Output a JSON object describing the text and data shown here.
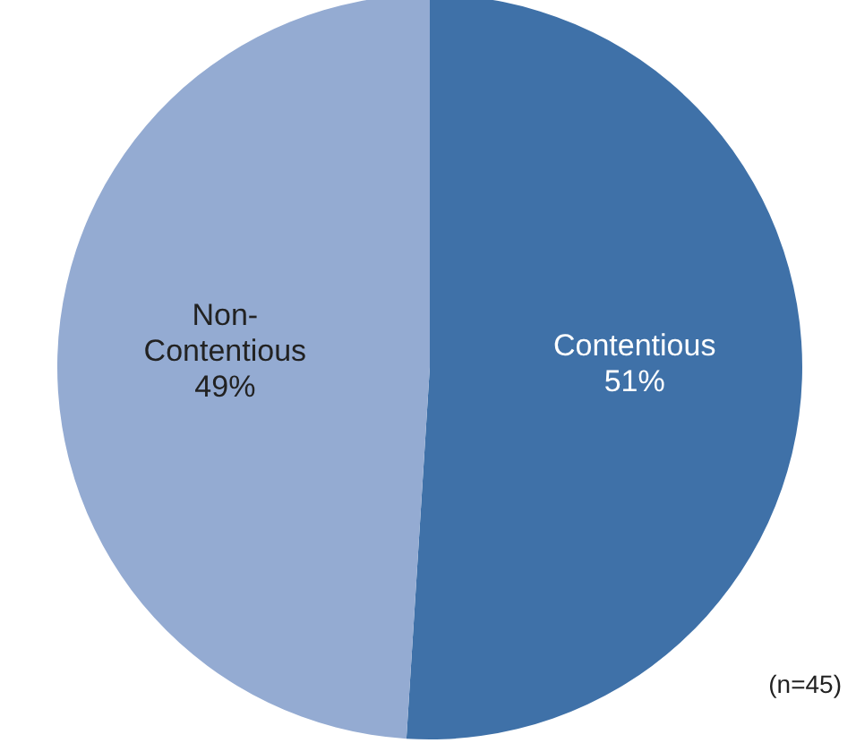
{
  "chart_data": {
    "type": "pie",
    "categories": [
      "Contentious",
      "Non-Contentious"
    ],
    "values": [
      51,
      49
    ],
    "colors": [
      "#3f71a8",
      "#94abd2"
    ],
    "value_labels": [
      "51%",
      "49%"
    ],
    "annotations": [
      "(n=45)"
    ]
  }
}
